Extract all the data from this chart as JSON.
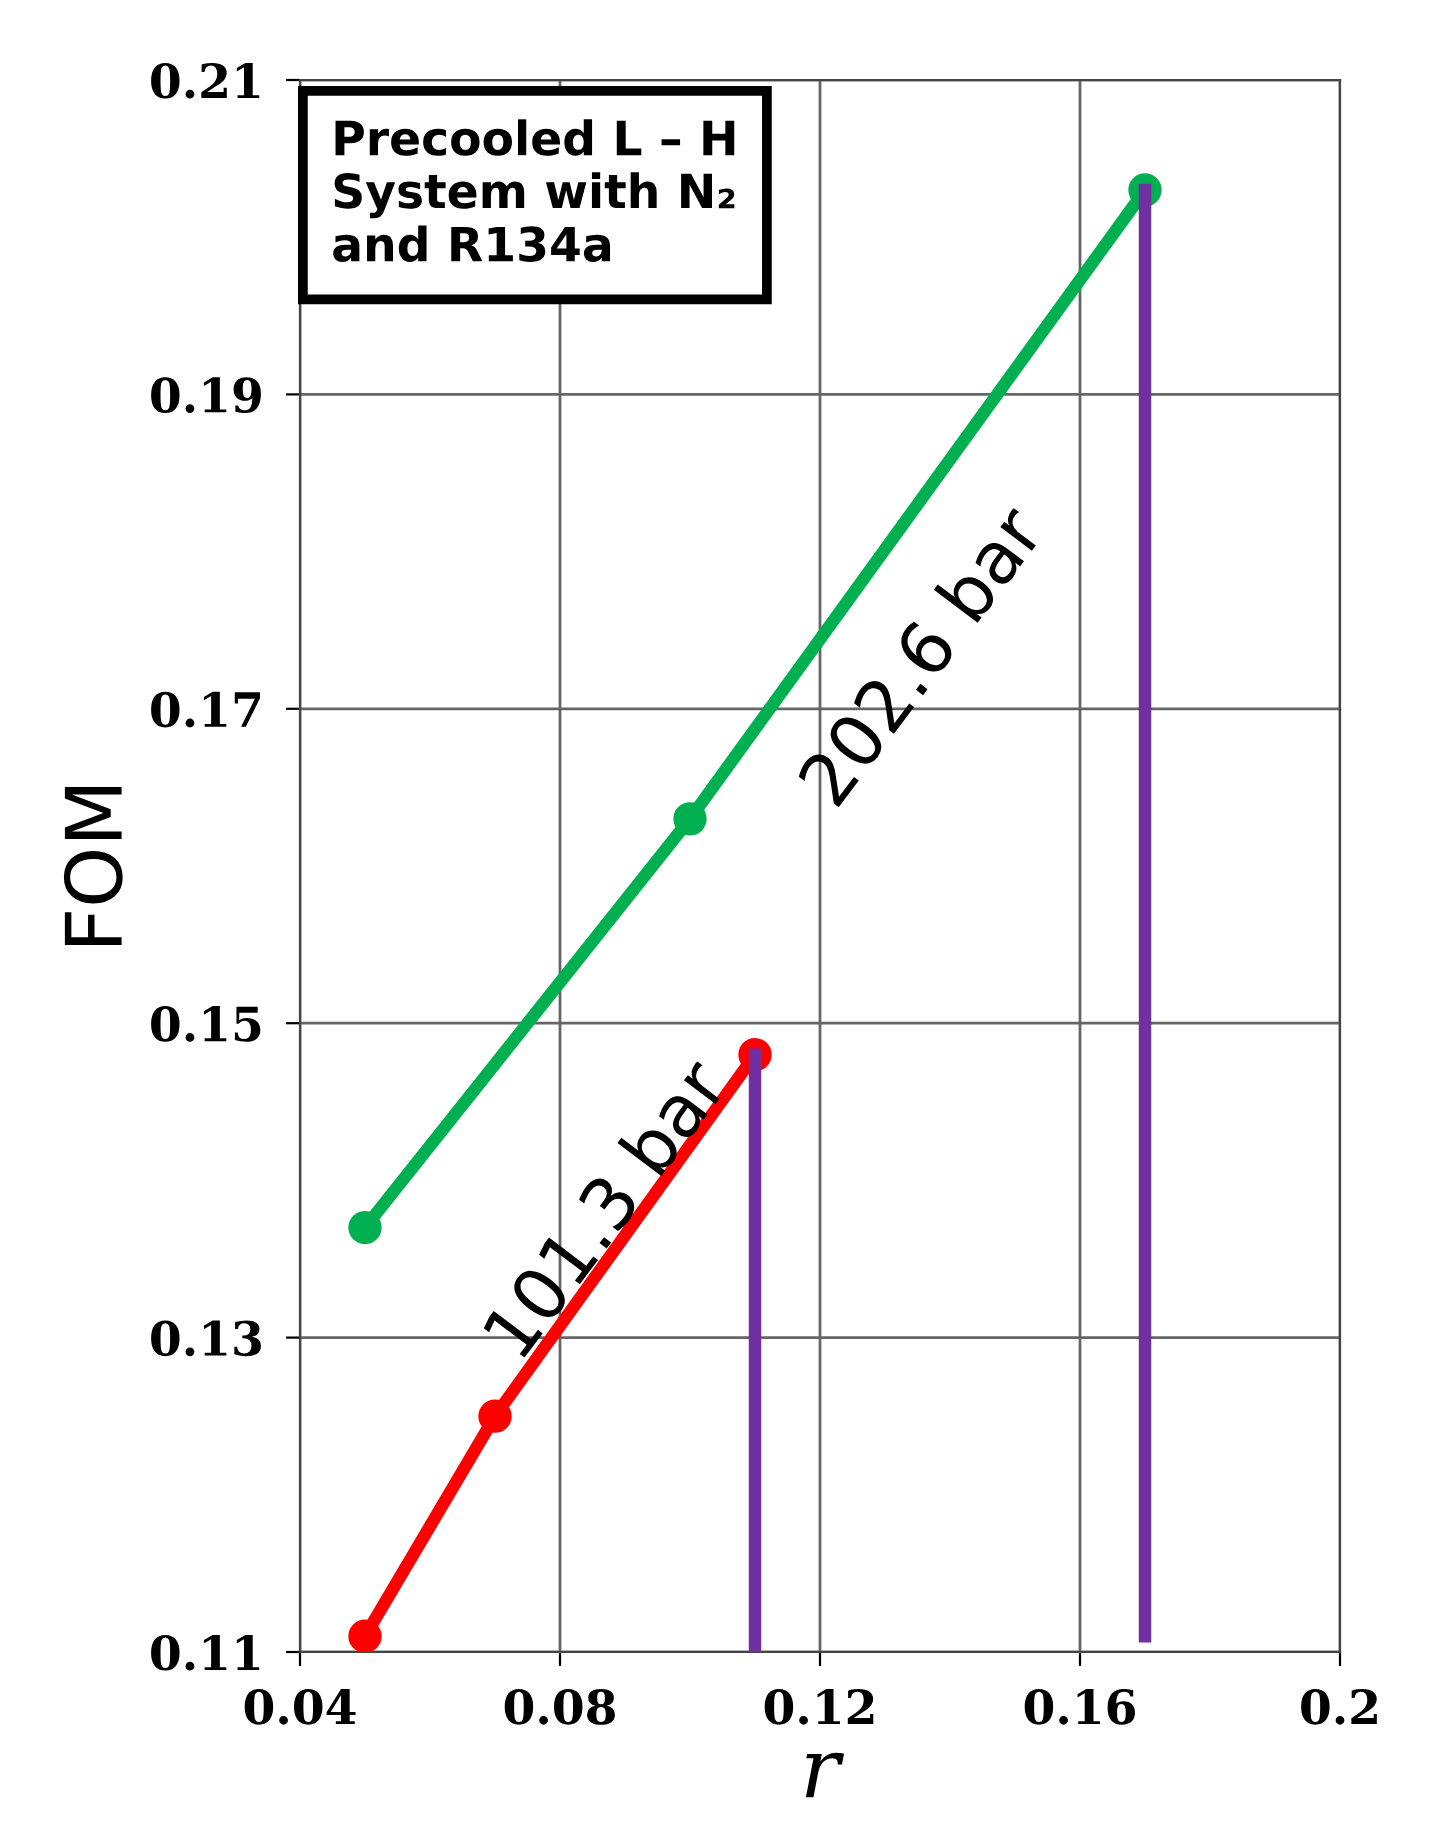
{
  "chart_data": {
    "type": "line",
    "xlabel": "r",
    "ylabel": "FOM",
    "xlim": [
      0.04,
      0.2
    ],
    "xticks": [
      0.04,
      0.08,
      0.12,
      0.16,
      0.2
    ],
    "ylim": [
      0.11,
      0.21
    ],
    "yticks": [
      0.11,
      0.13,
      0.15,
      0.17,
      0.19,
      0.21
    ],
    "grid": true,
    "legend": false,
    "series": [
      {
        "color": "#00b050",
        "x": [
          0.05,
          0.1,
          0.17
        ],
        "values": [
          0.137,
          0.163,
          0.203
        ],
        "marker": "circle"
      },
      {
        "color": "#ff0000",
        "x": [
          0.05,
          0.07,
          0.11
        ],
        "values": [
          0.111,
          0.125,
          0.148
        ],
        "marker": "circle"
      },
      {
        "color": "#7030a0",
        "x": [
          0.11,
          0.11
        ],
        "values": [
          0.11,
          0.148
        ],
        "marker": "none"
      },
      {
        "color": "#7030a0",
        "x": [
          0.17,
          0.17
        ],
        "values": [
          0.111,
          0.203
        ],
        "marker": "none"
      }
    ],
    "annotations": [
      "Precooled L – H\nSystem with N₂\nand R134a",
      {
        "text": "202.6 bar",
        "x": 0.125,
        "y": 0.177
      },
      {
        "text": "101.3 bar",
        "x": 0.09,
        "y": 0.1365
      }
    ]
  }
}
